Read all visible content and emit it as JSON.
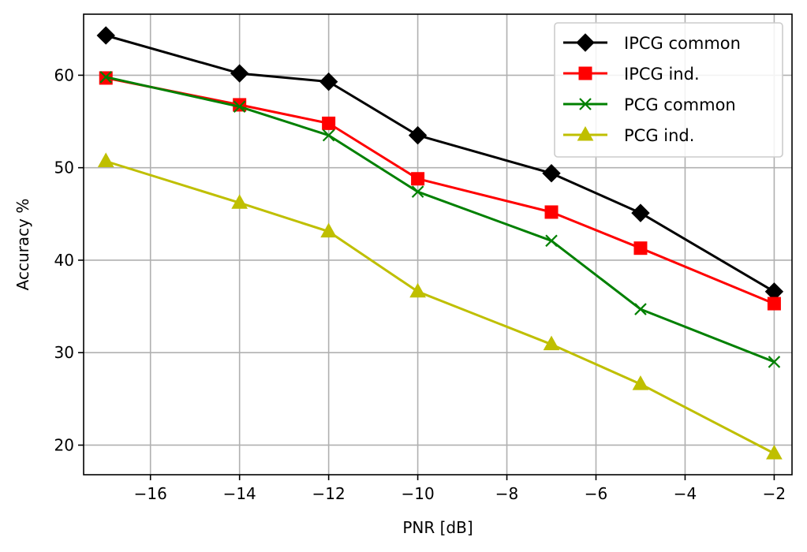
{
  "chart_data": {
    "type": "line",
    "xlabel": "PNR [dB]",
    "ylabel": "Accuracy %",
    "xlim": [
      -17.5,
      -1.6
    ],
    "ylim": [
      16.8,
      66.6
    ],
    "xticks": [
      -16,
      -14,
      -12,
      -10,
      -8,
      -6,
      -4,
      -2
    ],
    "yticks": [
      20,
      30,
      40,
      50,
      60
    ],
    "xtick_labels": [
      "−16",
      "−14",
      "−12",
      "−10",
      "−8",
      "−6",
      "−4",
      "−2"
    ],
    "ytick_labels": [
      "20",
      "30",
      "40",
      "50",
      "60"
    ],
    "grid": true,
    "legend_position": "top-right",
    "series": [
      {
        "name": "IPCG common",
        "color": "#000000",
        "marker": "diamond",
        "x": [
          -17,
          -14,
          -12,
          -10,
          -7,
          -5,
          -2
        ],
        "y": [
          64.3,
          60.2,
          59.3,
          53.5,
          49.4,
          45.1,
          36.6
        ]
      },
      {
        "name": "IPCG ind.",
        "color": "#ff0000",
        "marker": "square",
        "x": [
          -17,
          -14,
          -12,
          -10,
          -7,
          -5,
          -2
        ],
        "y": [
          59.7,
          56.8,
          54.8,
          48.8,
          45.2,
          41.3,
          35.3
        ]
      },
      {
        "name": "PCG common",
        "color": "#008000",
        "marker": "x",
        "x": [
          -17,
          -14,
          -12,
          -10,
          -7,
          -5,
          -2
        ],
        "y": [
          59.8,
          56.6,
          53.5,
          47.4,
          42.1,
          34.7,
          29.0
        ]
      },
      {
        "name": "PCG ind.",
        "color": "#bfbf00",
        "marker": "triangle",
        "x": [
          -17,
          -14,
          -12,
          -10,
          -7,
          -5,
          -2
        ],
        "y": [
          50.7,
          46.2,
          43.1,
          36.6,
          30.9,
          26.6,
          19.1
        ]
      }
    ]
  }
}
